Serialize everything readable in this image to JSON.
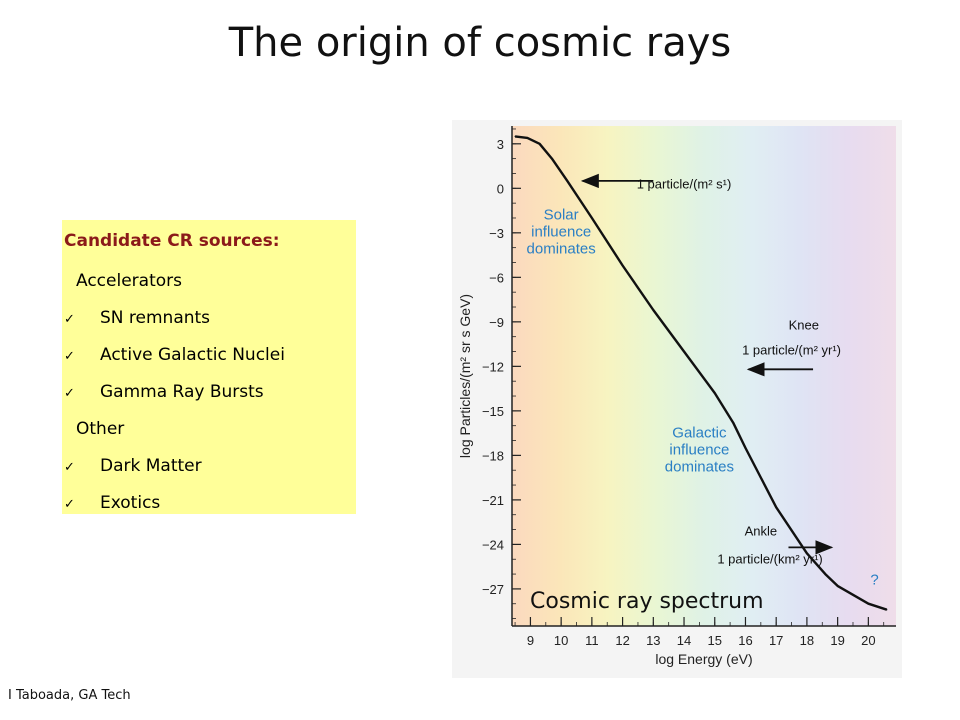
{
  "slide": {
    "title": "The origin of cosmic rays",
    "credit": "I Taboada, GA Tech"
  },
  "sources": {
    "heading": "Candidate CR sources:",
    "groups": [
      {
        "label": "Accelerators",
        "items": [
          "SN remnants",
          "Active Galactic Nuclei",
          "Gamma Ray Bursts"
        ]
      },
      {
        "label": "Other",
        "items": [
          "Dark Matter",
          "Exotics"
        ]
      }
    ],
    "check_glyph": "✓",
    "background": "#ffff99",
    "heading_color": "#8b1a1a"
  },
  "chart_data": {
    "type": "line",
    "title": "",
    "caption": "Cosmic ray spectrum",
    "xlabel": "log Energy (eV)",
    "ylabel": "log Particles/(m² sr s GeV)",
    "xlim": [
      8.4,
      20.9
    ],
    "ylim": [
      -29.5,
      4.2
    ],
    "xticks": [
      "9",
      "10",
      "11",
      "12",
      "13",
      "14",
      "15",
      "16",
      "17",
      "18",
      "19",
      "20"
    ],
    "yticks": [
      "3",
      "0",
      "−3",
      "−6",
      "−9",
      "−12",
      "−15",
      "−18",
      "−21",
      "−24",
      "−27"
    ],
    "series": [
      {
        "x": [
          8.5,
          8.9,
          9.3,
          9.7,
          10.2,
          11.0,
          12.0,
          13.0,
          14.0,
          15.0,
          15.6,
          16.0,
          17.0,
          18.0,
          18.6,
          19.0,
          19.5,
          20.0,
          20.6
        ],
        "y": [
          3.5,
          3.4,
          3.0,
          2.0,
          0.5,
          -2.0,
          -5.2,
          -8.2,
          -11.0,
          -13.8,
          -15.8,
          -17.5,
          -21.5,
          -24.6,
          -26.0,
          -26.8,
          -27.4,
          -28.0,
          -28.4
        ],
        "color": "#111111"
      }
    ],
    "annotations": [
      {
        "lines": [
          "Solar",
          "influence",
          "dominates"
        ],
        "x": 10.0,
        "y": -2.1,
        "color": "#2a7fc4"
      },
      {
        "lines": [
          "Galactic",
          "influence",
          "dominates"
        ],
        "x": 14.5,
        "y": -16.8,
        "color": "#2a7fc4"
      },
      {
        "lines": [
          "1 particle/(m² s¹)"
        ],
        "x": 14.0,
        "y": 0.0,
        "color": "#111111"
      },
      {
        "lines": [
          "Knee"
        ],
        "x": 17.9,
        "y": -9.5,
        "color": "#111111"
      },
      {
        "lines": [
          "1 particle/(m² yr¹)"
        ],
        "x": 17.5,
        "y": -11.2,
        "color": "#111111"
      },
      {
        "lines": [
          "Ankle"
        ],
        "x": 16.5,
        "y": -23.4,
        "color": "#111111"
      },
      {
        "lines": [
          "1 particle/(km² yr¹)"
        ],
        "x": 16.8,
        "y": -25.3,
        "color": "#111111"
      },
      {
        "lines": [
          "?"
        ],
        "x": 20.2,
        "y": -26.7,
        "color": "#2a7fc4"
      }
    ],
    "arrows": [
      {
        "from": [
          13.0,
          0.5
        ],
        "to": [
          10.7,
          0.5
        ]
      },
      {
        "from": [
          18.2,
          -12.2
        ],
        "to": [
          16.1,
          -12.2
        ]
      },
      {
        "from": [
          17.4,
          -24.2
        ],
        "to": [
          18.8,
          -24.2
        ]
      }
    ],
    "background_gradient": [
      "#fbd9bf",
      "#fbe6b9",
      "#f7f4c1",
      "#e9f6d3",
      "#dff2e6",
      "#e0eef3",
      "#dfe4f4",
      "#e7dcf0",
      "#efdde9"
    ],
    "grid": false
  }
}
